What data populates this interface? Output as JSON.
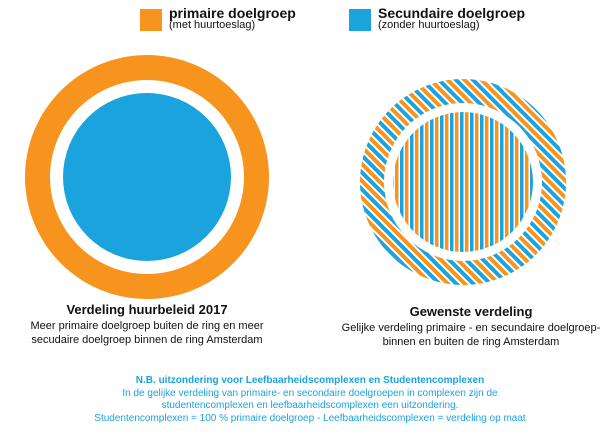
{
  "colors": {
    "primary": "#f7941e",
    "secondary": "#1aa3dc",
    "note_text": "#1aa3dc"
  },
  "legend": {
    "primary": {
      "label": "primaire doelgroep",
      "sub": "(met huurtoeslag)"
    },
    "secondary": {
      "label": "Secundaire doelgroep",
      "sub": "(zonder huurtoeslag)"
    }
  },
  "left": {
    "title": "Verdeling huurbeleid 2017",
    "lines": [
      "Meer primaire doelgroep buiten de ring en meer",
      "secudaire doelgroep binnen de ring Amsterdam"
    ]
  },
  "right": {
    "title": "Gewenste verdeling",
    "lines": [
      "Gelijke verdeling primaire - en secundaire doelgroep-",
      "binnen en buiten de ring Amsterdam"
    ]
  },
  "note": {
    "title": "N.B. uitzondering voor Leefbaarheidscomplexen en Studentencomplexen",
    "lines": [
      "In de gelijke verdeling van primaire- en secondaire doelgroepen in complexen zijn de",
      "studentencomplexen en leefbaarheidscomplexen een uitzondering.",
      "Studentencomplexen = 100 % primaire doelgroep -  Leefbaarheidscomplexen = verdeling op maat"
    ]
  }
}
